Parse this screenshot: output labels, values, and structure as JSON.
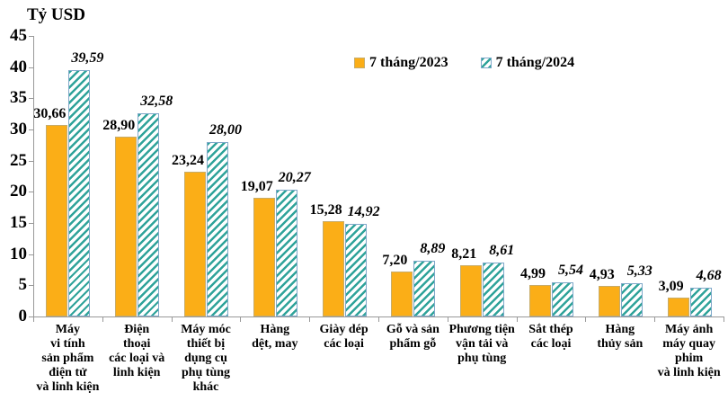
{
  "chart_data": {
    "type": "bar",
    "title": "Tỷ USD",
    "categories": [
      "Máy vi tính sản phẩm điện tử và linh kiện",
      "Điện thoại các loại và linh kiện",
      "Máy móc thiết bị dụng cụ phụ tùng khác",
      "Hàng dệt, may",
      "Giày dép các loại",
      "Gỗ và sản phẩm gỗ",
      "Phương tiện vận tải và phụ tùng",
      "Sắt thép các loại",
      "Hàng thủy sản",
      "Máy ảnh máy quay phim và linh kiện"
    ],
    "category_lines": [
      [
        "Máy",
        "vi tính",
        "sản phẩm",
        "điện tử",
        "và linh kiện"
      ],
      [
        "Điện",
        "thoại",
        "các loại và",
        "linh kiện"
      ],
      [
        "Máy móc",
        "thiết bị",
        "dụng cụ",
        "phụ tùng",
        "khác"
      ],
      [
        "Hàng",
        "dệt, may"
      ],
      [
        "Giày dép",
        "các loại"
      ],
      [
        "Gỗ và sản",
        "phẩm gỗ"
      ],
      [
        "Phương tiện",
        "vận tải và",
        "phụ tùng"
      ],
      [
        "Sắt thép",
        "các loại"
      ],
      [
        "Hàng",
        "thủy sản"
      ],
      [
        "Máy ảnh",
        "máy quay",
        "phim",
        "và linh kiện"
      ]
    ],
    "series": [
      {
        "name": "7 tháng/2023",
        "values": [
          30.66,
          28.9,
          23.24,
          19.07,
          15.28,
          7.2,
          8.21,
          4.99,
          4.93,
          3.09
        ],
        "labels": [
          "30,66",
          "28,90",
          "23,24",
          "19,07",
          "15,28",
          "7,20",
          "8,21",
          "4,99",
          "4,93",
          "3,09"
        ],
        "style": "solid"
      },
      {
        "name": "7 tháng/2024",
        "values": [
          39.59,
          32.58,
          28.0,
          20.27,
          14.92,
          8.89,
          8.61,
          5.54,
          5.33,
          4.68
        ],
        "labels": [
          "39,59",
          "32,58",
          "28,00",
          "20,27",
          "14,92",
          "8,89",
          "8,61",
          "5,54",
          "5,33",
          "4,68"
        ],
        "style": "hatched"
      }
    ],
    "ylim": [
      0,
      45
    ],
    "ytick_step": 5,
    "yticks": [
      0,
      5,
      10,
      15,
      20,
      25,
      30,
      35,
      40,
      45
    ],
    "grid": false,
    "legend_position": "top-center",
    "colors": {
      "series_2023_fill": "#FBAE17",
      "series_2023_border": "#C7AC6B",
      "series_2024_stripe": "#2FA39A",
      "series_2024_border": "#7FA8C9",
      "axis": "#999999",
      "text": "#000000"
    }
  }
}
